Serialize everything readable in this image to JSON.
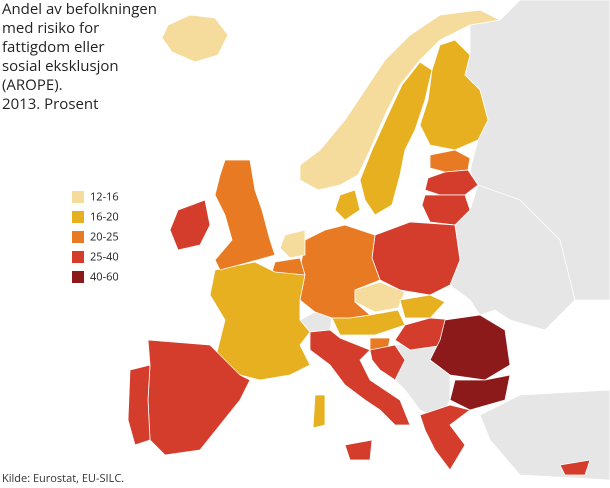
{
  "title_lines": [
    "Andel av befolkningen",
    "med risiko for",
    "fattigdom eller",
    "sosial eksklusjon",
    "(AROPE).",
    "2013. Prosent"
  ],
  "legend": [
    {
      "label": "12-16",
      "color": "#f6dc9c"
    },
    {
      "label": "16-20",
      "color": "#e7b021"
    },
    {
      "label": "20-25",
      "color": "#e97a24"
    },
    {
      "label": "25-40",
      "color": "#d43d2b"
    },
    {
      "label": "40-60",
      "color": "#8c1a1a"
    }
  ],
  "source": "Kilde: Eurostat, EU-SILC."
}
